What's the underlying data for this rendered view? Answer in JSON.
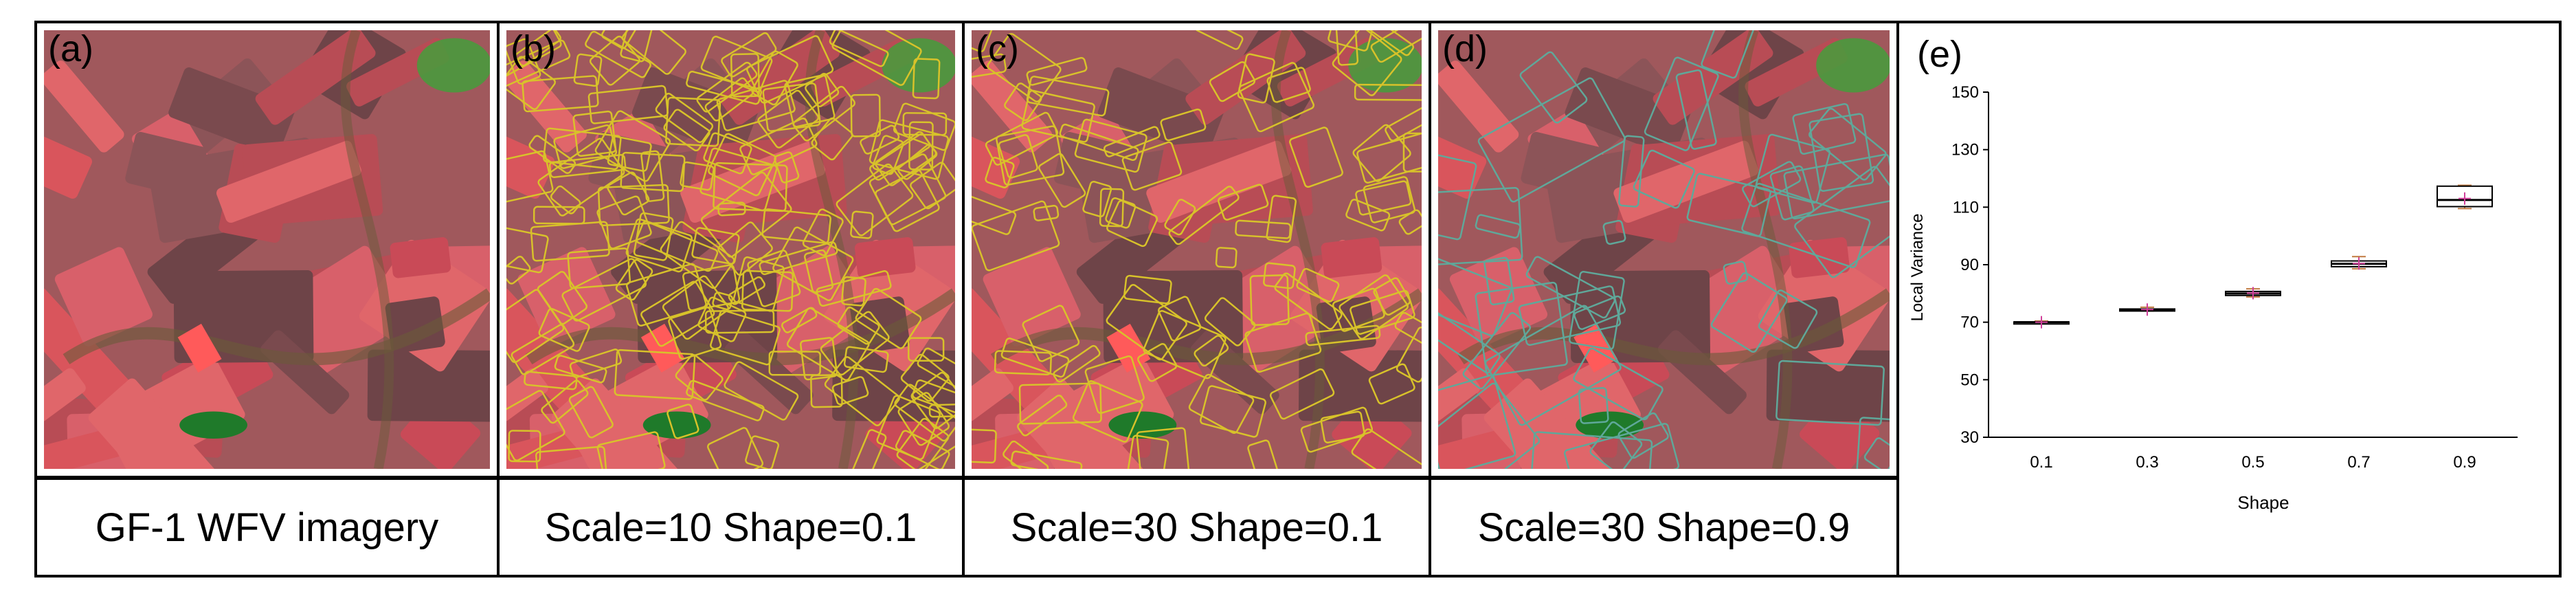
{
  "panels": [
    {
      "label": "(a)",
      "caption": "GF-1 WFV imagery",
      "outline": "none"
    },
    {
      "label": "(b)",
      "caption": "Scale=10  Shape=0.1",
      "outline": "dense-yellow"
    },
    {
      "label": "(c)",
      "caption": "Scale=30  Shape=0.1",
      "outline": "medium-yellow"
    },
    {
      "label": "(d)",
      "caption": "Scale=30  Shape=0.9",
      "outline": "coarse-cyan"
    }
  ],
  "chart_panel": {
    "label": "(e)"
  },
  "colors": {
    "field_red": "#d9555c",
    "field_dark": "#7a4a4e",
    "vegetation_green": "#3fa33a",
    "outline_yellow": "#d8c22a",
    "outline_cyan": "#5fa89a",
    "box_line": "#000000",
    "mean_marker": "#d0409a",
    "whisker": "#c07a40"
  },
  "chart_data": {
    "type": "boxplot",
    "title": "",
    "xlabel": "Shape",
    "ylabel": "Local Variance",
    "ylim": [
      30,
      150
    ],
    "yticks": [
      30,
      50,
      70,
      90,
      110,
      130,
      150
    ],
    "categories": [
      "0.1",
      "0.3",
      "0.5",
      "0.7",
      "0.9"
    ],
    "boxes": [
      {
        "x": "0.1",
        "min": 69.8,
        "q1": 69.9,
        "median": 70.0,
        "q3": 70.1,
        "max": 70.4,
        "mean": 70.0
      },
      {
        "x": "0.3",
        "min": 73.9,
        "q1": 74.1,
        "median": 74.3,
        "q3": 74.6,
        "max": 75.2,
        "mean": 74.4
      },
      {
        "x": "0.5",
        "min": 78.8,
        "q1": 79.3,
        "median": 80.0,
        "q3": 80.7,
        "max": 81.6,
        "mean": 80.1
      },
      {
        "x": "0.7",
        "min": 88.6,
        "q1": 89.3,
        "median": 90.3,
        "q3": 91.3,
        "max": 92.8,
        "mean": 90.4
      },
      {
        "x": "0.9",
        "min": 109.5,
        "q1": 110.2,
        "median": 112.5,
        "q3": 117.3,
        "max": 117.6,
        "mean": 113.0
      }
    ],
    "grid": false,
    "legend": "none"
  }
}
